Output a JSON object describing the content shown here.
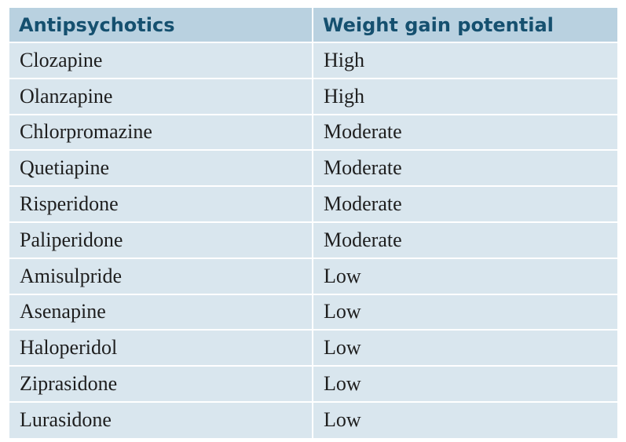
{
  "table": {
    "headers": [
      "Antipsychotics",
      "Weight gain potential"
    ],
    "rows": [
      [
        "Clozapine",
        "High"
      ],
      [
        "Olanzapine",
        "High"
      ],
      [
        "Chlorpromazine",
        "Moderate"
      ],
      [
        "Quetiapine",
        "Moderate"
      ],
      [
        "Risperidone",
        "Moderate"
      ],
      [
        "Paliperidone",
        "Moderate"
      ],
      [
        "Amisulpride",
        "Low"
      ],
      [
        "Asenapine",
        "Low"
      ],
      [
        "Haloperidol",
        "Low"
      ],
      [
        "Ziprasidone",
        "Low"
      ],
      [
        "Lurasidone",
        "Low"
      ]
    ]
  },
  "colors": {
    "header_bg": "#b9d1e0",
    "header_text": "#15506f",
    "row_bg": "#d9e6ee",
    "border": "#ffffff"
  }
}
